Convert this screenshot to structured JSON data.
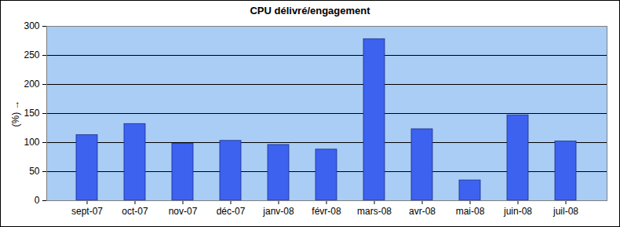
{
  "chart_data": {
    "type": "bar",
    "title": "CPU délivré/engagement",
    "y_label": "(%)",
    "categories": [
      "sept-07",
      "oct-07",
      "nov-07",
      "déc-07",
      "janv-08",
      "févr-08",
      "mars-08",
      "avr-08",
      "mai-08",
      "juin-08",
      "juil-08"
    ],
    "values": [
      113,
      132,
      98,
      103,
      96,
      88,
      278,
      123,
      35,
      147,
      102
    ],
    "color": "#3d62f0",
    "ylim": [
      0,
      300
    ],
    "yticks": [
      0,
      50,
      100,
      150,
      200,
      250,
      300
    ],
    "grid": true
  }
}
